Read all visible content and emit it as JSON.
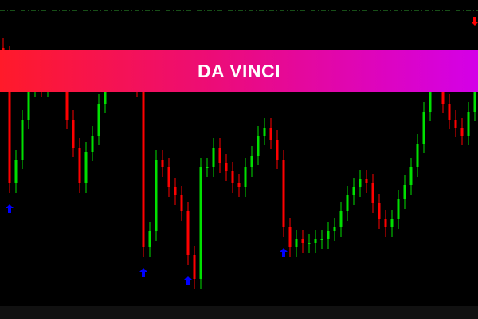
{
  "banner": {
    "title": "DA VINCI",
    "gradient": [
      "#ff1a2a",
      "#d400e8"
    ]
  },
  "chart_data": {
    "type": "candlestick",
    "grid": false,
    "axes": "hidden",
    "reference_line": {
      "style": "dash-dot",
      "color": "#2e9e2e"
    },
    "colors": {
      "bull": "#00e000",
      "bear": "#ff0000",
      "buy_arrow": "#0000ff",
      "sell_arrow": "#ff0000",
      "background": "#000000"
    },
    "closes": [
      330,
      170,
      200,
      250,
      290,
      295,
      290,
      300,
      305,
      310,
      250,
      215,
      170,
      210,
      230,
      270,
      300,
      320,
      320,
      315,
      310,
      290,
      90,
      110,
      200,
      190,
      165,
      155,
      135,
      80,
      50,
      190,
      190,
      215,
      195,
      185,
      170,
      165,
      190,
      205,
      230,
      240,
      225,
      200,
      115,
      90,
      100,
      95,
      95,
      100,
      100,
      110,
      115,
      135,
      155,
      165,
      175,
      170,
      145,
      125,
      115,
      125,
      150,
      168,
      190,
      220,
      260,
      305,
      300,
      270,
      250,
      240,
      230,
      260,
      310
    ],
    "signals": [
      {
        "index": 1,
        "type": "buy"
      },
      {
        "index": 22,
        "type": "buy"
      },
      {
        "index": 29,
        "type": "buy"
      },
      {
        "index": 44,
        "type": "buy"
      },
      {
        "index": 74,
        "type": "sell"
      }
    ]
  }
}
